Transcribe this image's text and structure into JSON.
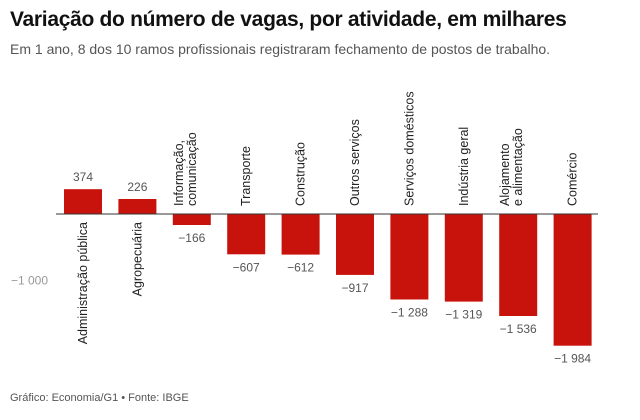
{
  "header": {
    "title": "Variação do número de vagas, por atividade, em milhares",
    "subtitle": "Em 1 ano, 8 dos 10 ramos profissionais registraram fechamento de postos de trabalho."
  },
  "footer": {
    "source": "Gráfico: Economia/G1 • Fonte: IBGE"
  },
  "chart_data": {
    "type": "bar",
    "title": "Variação do número de vagas, por atividade, em milhares",
    "subtitle": "Em 1 ano, 8 dos 10 ramos profissionais registraram fechamento de postos de trabalho.",
    "categories": [
      [
        "Administração pública"
      ],
      [
        "Agropecuária"
      ],
      [
        "Informação,",
        "comunicação"
      ],
      [
        "Transporte"
      ],
      [
        "Construção"
      ],
      [
        "Outros serviços"
      ],
      [
        "Serviços domésticos"
      ],
      [
        "Indústria geral"
      ],
      [
        "Alojamento",
        "e alimentação"
      ],
      [
        "Comércio"
      ]
    ],
    "values": [
      374,
      226,
      -166,
      -607,
      -612,
      -917,
      -1288,
      -1319,
      -1536,
      -1984
    ],
    "value_labels": [
      "374",
      "226",
      "−166",
      "−607",
      "−612",
      "−917",
      "−1 288",
      "−1 319",
      "−1 536",
      "−1 984"
    ],
    "y_ticks": [
      {
        "value": -1000,
        "label": "−1 000"
      }
    ],
    "ylim": [
      -2100,
      500
    ],
    "grid": false,
    "legend": "none",
    "colors": {
      "bar": "#c8130d",
      "axis": "#333333",
      "text": "#555555"
    }
  }
}
